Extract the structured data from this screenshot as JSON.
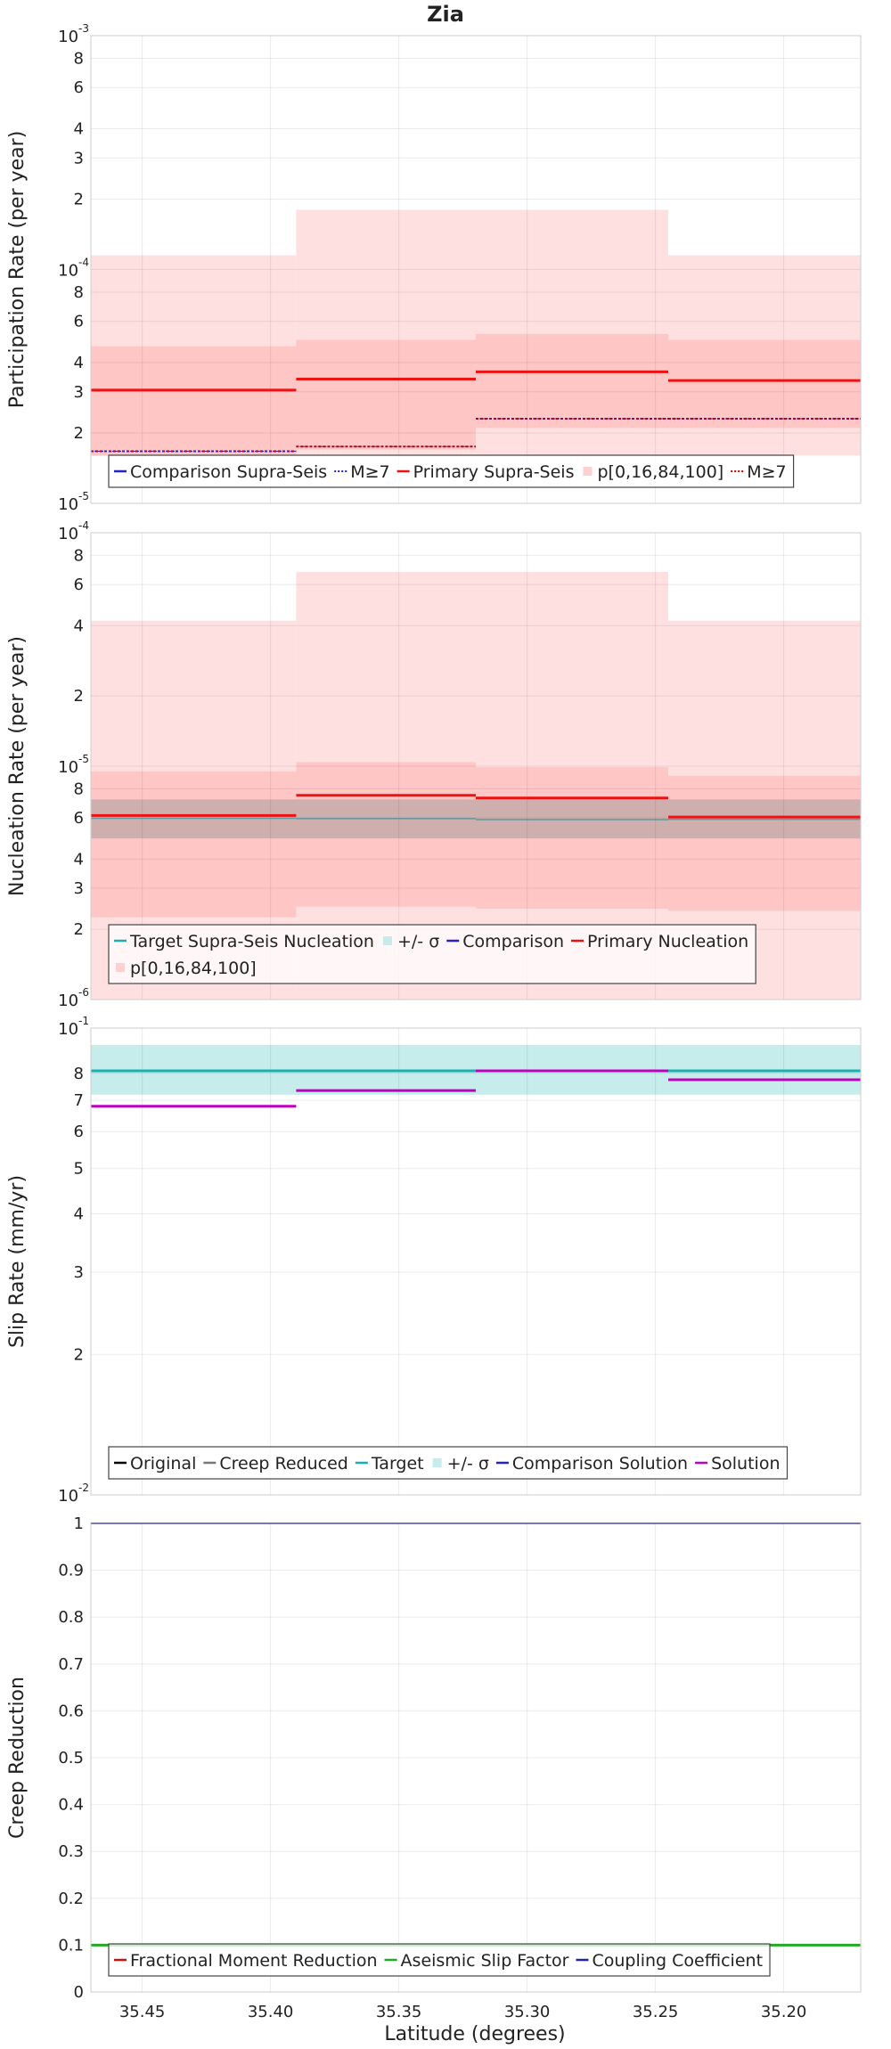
{
  "title": "Zia",
  "xlabel": "Latitude (degrees)",
  "x_ticks": [
    35.45,
    35.4,
    35.35,
    35.3,
    35.25,
    35.2
  ],
  "x_tick_labels": [
    "35.45",
    "35.40",
    "35.35",
    "35.30",
    "35.25",
    "35.20"
  ],
  "chart_data": [
    {
      "type": "line",
      "ylabel": "Participation Rate (per year)",
      "yscale": "log",
      "ylim": [
        1e-05,
        0.001
      ],
      "xlim": [
        35.47,
        35.17
      ],
      "grid": true,
      "y_ticks": [
        {
          "v": 1e-05,
          "mant": "10",
          "exp": "-5"
        },
        {
          "v": 2e-05,
          "label": "2"
        },
        {
          "v": 3e-05,
          "label": "3"
        },
        {
          "v": 4e-05,
          "label": "4"
        },
        {
          "v": 6e-05,
          "label": "6"
        },
        {
          "v": 8e-05,
          "label": "8"
        },
        {
          "v": 0.0001,
          "mant": "10",
          "exp": "-4"
        },
        {
          "v": 0.0002,
          "label": "2"
        },
        {
          "v": 0.0003,
          "label": "3"
        },
        {
          "v": 0.0004,
          "label": "4"
        },
        {
          "v": 0.0006,
          "label": "6"
        },
        {
          "v": 0.0008,
          "label": "8"
        },
        {
          "v": 0.001,
          "mant": "10",
          "exp": "-3"
        }
      ],
      "bands": [
        {
          "color": "#ffe0e0",
          "segments": [
            [
              35.47,
              35.39,
              1.6e-05,
              0.000115
            ],
            [
              35.39,
              35.32,
              1.6e-05,
              0.00018
            ],
            [
              35.32,
              35.245,
              1.6e-05,
              0.00018
            ],
            [
              35.245,
              35.17,
              1.6e-05,
              0.000115
            ]
          ]
        },
        {
          "color": "#ffc6c6",
          "segments": [
            [
              35.47,
              35.39,
              1.6e-05,
              4.7e-05
            ],
            [
              35.39,
              35.32,
              1.7e-05,
              5e-05
            ],
            [
              35.32,
              35.245,
              2.1e-05,
              5.3e-05
            ],
            [
              35.245,
              35.17,
              2.1e-05,
              5e-05
            ]
          ]
        }
      ],
      "series": [
        {
          "name": "Primary Supra-Seis",
          "color": "#ee1111",
          "width": 3,
          "dash": "",
          "segments": [
            [
              35.47,
              35.39,
              3.05e-05
            ],
            [
              35.39,
              35.32,
              3.4e-05
            ],
            [
              35.32,
              35.245,
              3.65e-05
            ],
            [
              35.245,
              35.17,
              3.35e-05
            ]
          ]
        },
        {
          "name": "M≥7",
          "color": "#cc0000",
          "width": 2,
          "dash": "3,2",
          "segments": [
            [
              35.47,
              35.39,
              1.67e-05
            ],
            [
              35.39,
              35.32,
              1.75e-05
            ],
            [
              35.32,
              35.245,
              2.3e-05
            ],
            [
              35.245,
              35.17,
              2.3e-05
            ]
          ]
        },
        {
          "name": "M≥7",
          "color": "#2222cc",
          "width": 1,
          "dash": "2,2",
          "segments": [
            [
              35.47,
              35.39,
              1.67e-05
            ],
            [
              35.39,
              35.32,
              1.75e-05
            ],
            [
              35.32,
              35.245,
              2.3e-05
            ],
            [
              35.245,
              35.17,
              2.3e-05
            ]
          ]
        }
      ],
      "legend": {
        "placement": "bottom",
        "rows": [
          [
            {
              "label": "Comparison Supra-Seis",
              "color": "#2222cc",
              "style": "line"
            },
            {
              "label": "M≥7",
              "color": "#2222cc",
              "style": "dot"
            },
            {
              "label": "Primary Supra-Seis",
              "color": "#ee1111",
              "style": "line"
            },
            {
              "label": "p[0,16,84,100]",
              "color": "#ffd0d0",
              "style": "box"
            },
            {
              "label": "M≥7",
              "color": "#cc0000",
              "style": "dot"
            }
          ]
        ]
      }
    },
    {
      "type": "line",
      "ylabel": "Nucleation Rate (per year)",
      "yscale": "log",
      "ylim": [
        1e-06,
        0.0001
      ],
      "xlim": [
        35.47,
        35.17
      ],
      "grid": true,
      "y_ticks": [
        {
          "v": 1e-06,
          "mant": "10",
          "exp": "-6"
        },
        {
          "v": 2e-06,
          "label": "2"
        },
        {
          "v": 3e-06,
          "label": "3"
        },
        {
          "v": 4e-06,
          "label": "4"
        },
        {
          "v": 6e-06,
          "label": "6"
        },
        {
          "v": 8e-06,
          "label": "8"
        },
        {
          "v": 1e-05,
          "mant": "10",
          "exp": "-5"
        },
        {
          "v": 2e-05,
          "label": "2"
        },
        {
          "v": 4e-05,
          "label": "4"
        },
        {
          "v": 6e-05,
          "label": "6"
        },
        {
          "v": 8e-05,
          "label": "8"
        },
        {
          "v": 0.0001,
          "mant": "10",
          "exp": "-4"
        }
      ],
      "bands": [
        {
          "color": "#ffe0e0",
          "segments": [
            [
              35.47,
              35.39,
              1e-06,
              4.2e-05
            ],
            [
              35.39,
              35.32,
              1e-06,
              6.8e-05
            ],
            [
              35.32,
              35.245,
              1e-06,
              6.8e-05
            ],
            [
              35.245,
              35.17,
              1e-06,
              4.2e-05
            ]
          ]
        },
        {
          "color": "#ffc6c6",
          "segments": [
            [
              35.47,
              35.39,
              2.25e-06,
              9.5e-06
            ],
            [
              35.39,
              35.32,
              2.5e-06,
              1.04e-05
            ],
            [
              35.32,
              35.245,
              2.45e-06,
              9.9e-06
            ],
            [
              35.245,
              35.17,
              2.4e-06,
              9.1e-06
            ]
          ]
        },
        {
          "color": "#cfaeae",
          "segments": [
            [
              35.47,
              35.17,
              4.9e-06,
              7.2e-06
            ]
          ]
        }
      ],
      "series": [
        {
          "name": "Primary Nucleation",
          "color": "#ee1111",
          "width": 3,
          "dash": "",
          "segments": [
            [
              35.47,
              35.39,
              6.15e-06
            ],
            [
              35.39,
              35.32,
              7.5e-06
            ],
            [
              35.32,
              35.245,
              7.3e-06
            ],
            [
              35.245,
              35.17,
              6.05e-06
            ]
          ]
        },
        {
          "name": "Target Supra-Seis Nucleation",
          "color": "#5b9aa0",
          "width": 1.5,
          "dash": "",
          "segments": [
            [
              35.47,
              35.39,
              5.98e-06
            ],
            [
              35.39,
              35.32,
              5.96e-06
            ],
            [
              35.32,
              35.245,
              5.9e-06
            ],
            [
              35.245,
              35.17,
              5.92e-06
            ]
          ]
        }
      ],
      "legend": {
        "placement": "bottom",
        "rows": [
          [
            {
              "label": "Target Supra-Seis Nucleation",
              "color": "#1ab0b0",
              "style": "line"
            },
            {
              "label": "+/- σ",
              "color": "#c8eaea",
              "style": "box"
            },
            {
              "label": "Comparison",
              "color": "#2222cc",
              "style": "line"
            },
            {
              "label": "Primary Nucleation",
              "color": "#ee1111",
              "style": "line"
            }
          ],
          [
            {
              "label": "p[0,16,84,100]",
              "color": "#ffd0d0",
              "style": "box"
            }
          ]
        ]
      }
    },
    {
      "type": "line",
      "ylabel": "Slip Rate (mm/yr)",
      "yscale": "log",
      "ylim": [
        0.01,
        0.1
      ],
      "xlim": [
        35.47,
        35.17
      ],
      "grid": true,
      "y_ticks": [
        {
          "v": 0.01,
          "mant": "10",
          "exp": "-2"
        },
        {
          "v": 0.02,
          "label": "2"
        },
        {
          "v": 0.03,
          "label": "3"
        },
        {
          "v": 0.04,
          "label": "4"
        },
        {
          "v": 0.05,
          "label": "5"
        },
        {
          "v": 0.06,
          "label": "6"
        },
        {
          "v": 0.07,
          "label": "7"
        },
        {
          "v": 0.08,
          "label": "8"
        },
        {
          "v": 0.1,
          "mant": "10",
          "exp": "-1"
        }
      ],
      "bands": [
        {
          "color": "#c6ecec",
          "segments": [
            [
              35.47,
              35.17,
              0.072,
              0.092
            ]
          ]
        }
      ],
      "series": [
        {
          "name": "Target",
          "color": "#1ab0b0",
          "width": 3,
          "dash": "",
          "segments": [
            [
              35.47,
              35.17,
              0.081
            ]
          ]
        },
        {
          "name": "Solution",
          "color": "#c000c0",
          "width": 3,
          "dash": "",
          "segments": [
            [
              35.47,
              35.39,
              0.068
            ],
            [
              35.39,
              35.32,
              0.0735
            ],
            [
              35.32,
              35.245,
              0.081
            ],
            [
              35.245,
              35.17,
              0.0775
            ]
          ]
        }
      ],
      "legend": {
        "placement": "bottom",
        "rows": [
          [
            {
              "label": "Original",
              "color": "#000000",
              "style": "line"
            },
            {
              "label": "Creep Reduced",
              "color": "#777777",
              "style": "line"
            },
            {
              "label": "Target",
              "color": "#1ab0b0",
              "style": "line"
            },
            {
              "label": "+/- σ",
              "color": "#c6ecec",
              "style": "box"
            },
            {
              "label": "Comparison Solution",
              "color": "#2222cc",
              "style": "line"
            },
            {
              "label": "Solution",
              "color": "#c000c0",
              "style": "line"
            }
          ]
        ]
      }
    },
    {
      "type": "line",
      "ylabel": "Creep Reduction",
      "yscale": "linear",
      "ylim": [
        0,
        1
      ],
      "xlim": [
        35.47,
        35.17
      ],
      "grid": true,
      "y_ticks": [
        {
          "v": 0,
          "label": "0"
        },
        {
          "v": 0.1,
          "label": "0.1"
        },
        {
          "v": 0.2,
          "label": "0.2"
        },
        {
          "v": 0.3,
          "label": "0.3"
        },
        {
          "v": 0.4,
          "label": "0.4"
        },
        {
          "v": 0.5,
          "label": "0.5"
        },
        {
          "v": 0.6,
          "label": "0.6"
        },
        {
          "v": 0.7,
          "label": "0.7"
        },
        {
          "v": 0.8,
          "label": "0.8"
        },
        {
          "v": 0.9,
          "label": "0.9"
        },
        {
          "v": 1,
          "label": "1"
        }
      ],
      "bands": [],
      "series": [
        {
          "name": "Aseismic Slip Factor",
          "color": "#22aa22",
          "width": 3,
          "dash": "",
          "segments": [
            [
              35.47,
              35.17,
              0.1
            ]
          ]
        },
        {
          "name": "Coupling Coefficient",
          "color": "#2222aa",
          "width": 2,
          "dash": "",
          "segments": [
            [
              35.47,
              35.17,
              1.0
            ]
          ]
        }
      ],
      "legend": {
        "placement": "bottom",
        "rows": [
          [
            {
              "label": "Fractional Moment Reduction",
              "color": "#cc1111",
              "style": "line"
            },
            {
              "label": "Aseismic Slip Factor",
              "color": "#22aa22",
              "style": "line"
            },
            {
              "label": "Coupling Coefficient",
              "color": "#2222aa",
              "style": "line"
            }
          ]
        ]
      }
    }
  ]
}
